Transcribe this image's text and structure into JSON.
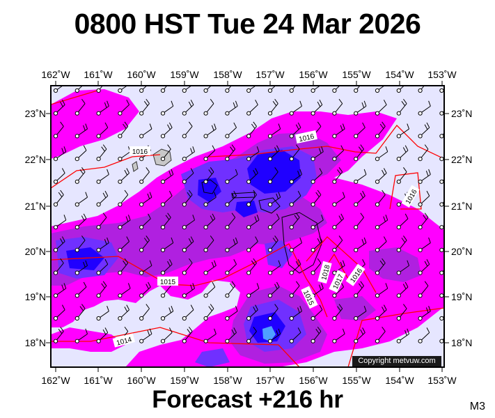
{
  "header": {
    "title": "0800 HST Tue 24 Mar 2026"
  },
  "footer": {
    "forecast": "Forecast +216 hr",
    "panel_code": "M3"
  },
  "map": {
    "credit": "Copyright metvuw.com",
    "lon_labels": [
      "162˚W",
      "161˚W",
      "160˚W",
      "159˚W",
      "158˚W",
      "157˚W",
      "156˚W",
      "155˚W",
      "154˚W",
      "153˚W"
    ],
    "lat_labels": [
      "23˚N",
      "22˚N",
      "21˚N",
      "20˚N",
      "19˚N",
      "18˚N"
    ],
    "isobar_labels": [
      "1016",
      "1016",
      "1016",
      "1015",
      "1014",
      "1015",
      "1018",
      "1017",
      "1016"
    ],
    "colors": {
      "ocean": "#e6e6ff",
      "precip_light": "#ff00ff",
      "precip_medium": "#b020e0",
      "precip_heavy": "#7030ff",
      "precip_very_heavy": "#2000ff",
      "precip_extreme": "#4fa0ff",
      "isobar": "#ff0000"
    }
  }
}
